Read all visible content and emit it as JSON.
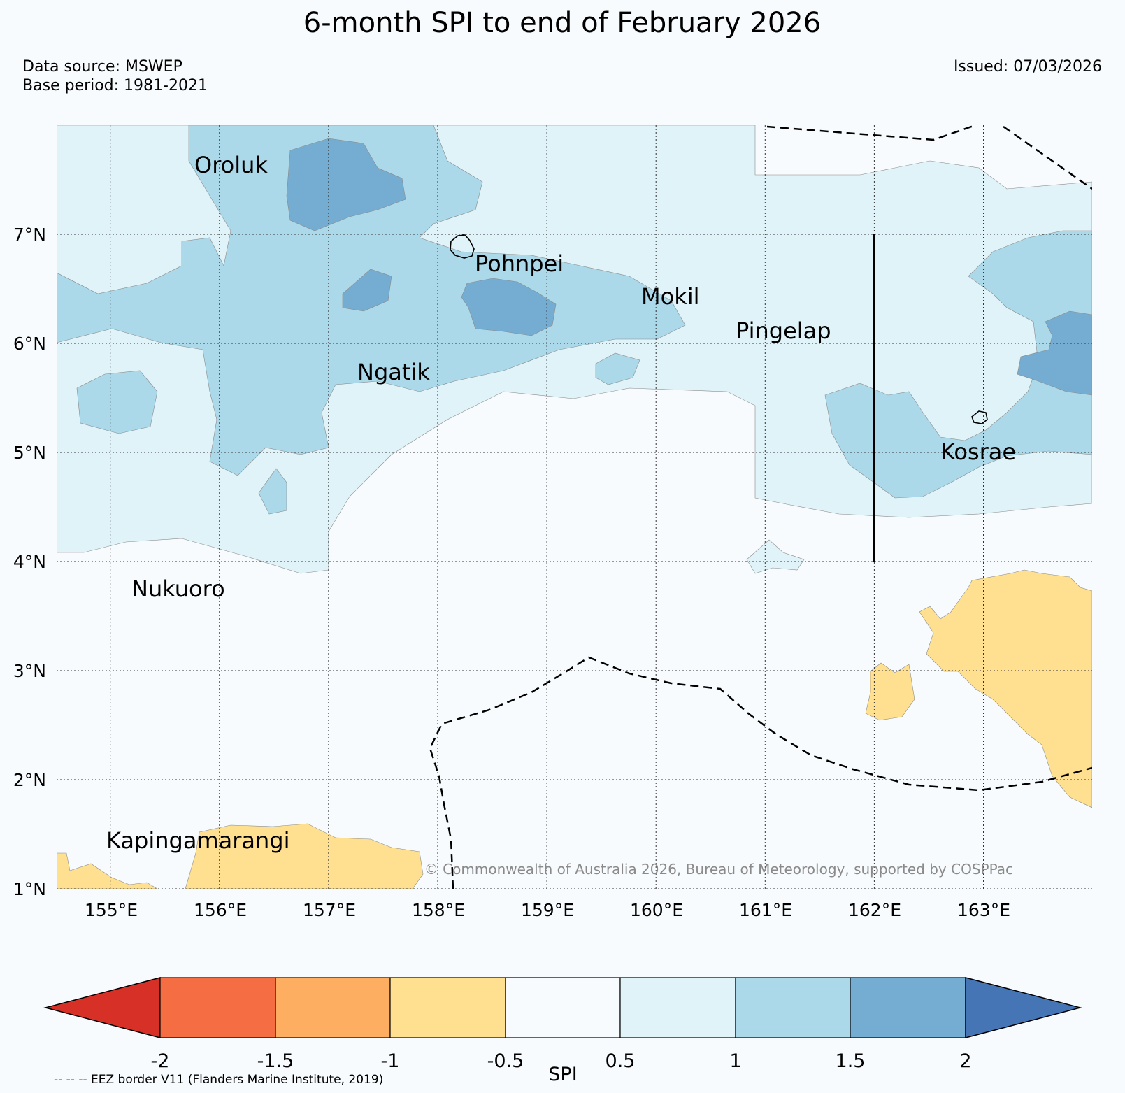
{
  "title": "6-month SPI to end of February 2026",
  "data_source": "Data source: MSWEP",
  "base_period": "Base period: 1981-2021",
  "issued": "Issued: 07/03/2026",
  "credit": "© Commonwealth of Australia 2026, Bureau of Meteorology, supported by COSPPac",
  "eez_note": "-- -- -- EEZ border V11 (Flanders Marine Institute, 2019)",
  "colorbar": {
    "label": "SPI",
    "ticks": [
      "-2",
      "-1.5",
      "-1",
      "-0.5",
      "0.5",
      "1",
      "1.5",
      "2"
    ],
    "colors": [
      "#d73027",
      "#f46d43",
      "#fdae61",
      "#fee090",
      "#f7fbfd",
      "#e0f3f8",
      "#abd9e9",
      "#74add1",
      "#4575b4"
    ]
  },
  "axes": {
    "lon_labels": [
      "155°E",
      "156°E",
      "157°E",
      "158°E",
      "159°E",
      "160°E",
      "161°E",
      "162°E",
      "163°E"
    ],
    "lat_labels": [
      "7°N",
      "6°N",
      "5°N",
      "4°N",
      "3°N",
      "2°N",
      "1°N"
    ]
  },
  "places": [
    "Oroluk",
    "Pohnpei",
    "Mokil",
    "Pingelap",
    "Ngatik",
    "Nukuoro",
    "Kosrae",
    "Kapingamarangi"
  ]
}
